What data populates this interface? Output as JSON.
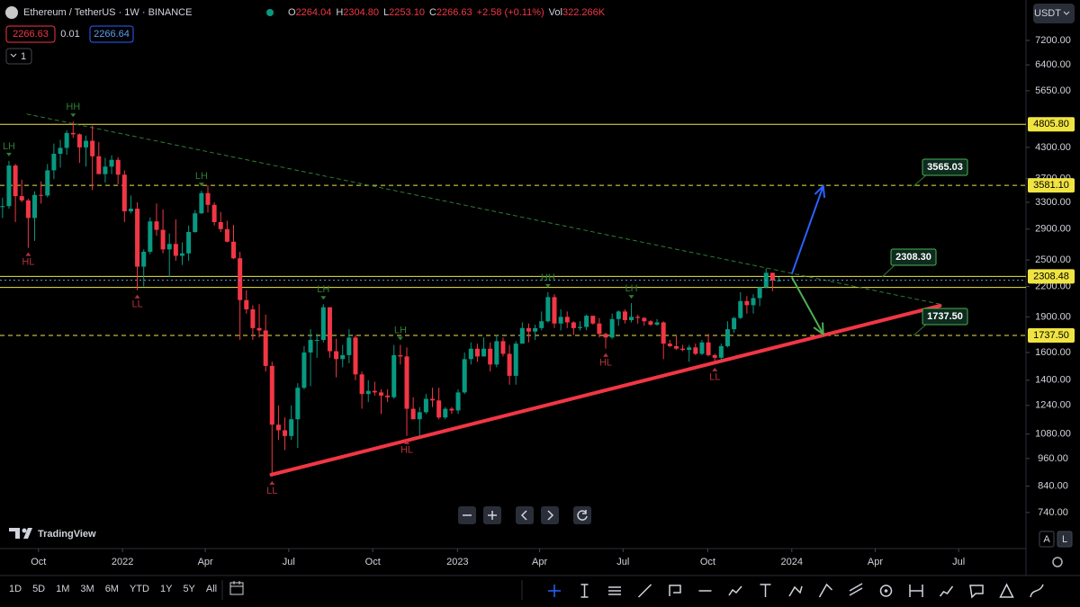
{
  "header": {
    "symbol": "Ethereum / TetherUS · 1W · BINANCE",
    "ohlc": [
      {
        "key": "O",
        "value": "2264.04"
      },
      {
        "key": "H",
        "value": "2304.80"
      },
      {
        "key": "L",
        "value": "2253.10"
      },
      {
        "key": "C",
        "value": "2266.63"
      },
      {
        "key": "",
        "value": "+2.58 (+0.11%)"
      }
    ],
    "volume_key": "Vol",
    "volume": "322.266K",
    "sell": "2266.63",
    "spread": "0.01",
    "buy": "2266.64",
    "indicators": "1",
    "currency": "USDT"
  },
  "chart_data": {
    "type": "candlestick",
    "log_scale": true,
    "up_color": "#089981",
    "down_color": "#f23645",
    "xlim": [
      0.6,
      160.5
    ],
    "ylim": [
      622,
      8750
    ],
    "xticks": [
      {
        "value": 6.6,
        "label": "Oct"
      },
      {
        "value": 19.7,
        "label": "2022"
      },
      {
        "value": 32.6,
        "label": "Apr"
      },
      {
        "value": 45.6,
        "label": "Jul"
      },
      {
        "value": 58.7,
        "label": "Oct"
      },
      {
        "value": 71.9,
        "label": "2023"
      },
      {
        "value": 84.7,
        "label": "Apr"
      },
      {
        "value": 97.7,
        "label": "Jul"
      },
      {
        "value": 110.9,
        "label": "Oct"
      },
      {
        "value": 124,
        "label": "2024"
      },
      {
        "value": 137,
        "label": "Apr"
      },
      {
        "value": 150,
        "label": "Jul"
      }
    ],
    "yticks": [
      {
        "value": 7200,
        "label": "7200.00"
      },
      {
        "value": 6400,
        "label": "6400.00"
      },
      {
        "value": 5650,
        "label": "5650.00"
      },
      {
        "value": 4300,
        "label": "4300.00"
      },
      {
        "value": 3700,
        "label": "3700.00"
      },
      {
        "value": 3300,
        "label": "3300.00"
      },
      {
        "value": 2900,
        "label": "2900.00"
      },
      {
        "value": 2500,
        "label": "2500.00"
      },
      {
        "value": 2200,
        "label": "2200.00"
      },
      {
        "value": 1900,
        "label": "1900.00"
      },
      {
        "value": 1600,
        "label": "1600.00"
      },
      {
        "value": 1400,
        "label": "1400.00"
      },
      {
        "value": 1240,
        "label": "1240.00"
      },
      {
        "value": 1080,
        "label": "1080.00"
      },
      {
        "value": 960,
        "label": "960.00"
      },
      {
        "value": 840,
        "label": "840.00"
      },
      {
        "value": 740,
        "label": "740.00"
      }
    ],
    "open": [
      3150,
      3225,
      3240,
      3940,
      3400,
      3330,
      3060,
      3420,
      3410,
      3850,
      4170,
      4290,
      4610,
      4580,
      4300,
      4440,
      4120,
      3780,
      3920,
      4050,
      3770,
      3160,
      3200,
      2420,
      2600,
      3010,
      2890,
      2630,
      2700,
      2550,
      2580,
      2860,
      3130,
      3450,
      3260,
      3000,
      2900,
      2730,
      2520,
      2060,
      1970,
      1800,
      1780,
      1500,
      1130,
      1100,
      1070,
      1160,
      1350,
      1600,
      1700,
      1700,
      1990,
      1610,
      1550,
      1580,
      1720,
      1440,
      1310,
      1330,
      1320,
      1300,
      1290,
      1580,
      1570,
      1220,
      1160,
      1200,
      1280,
      1270,
      1170,
      1220,
      1210,
      1320,
      1550,
      1630,
      1570,
      1630,
      1510,
      1690,
      1590,
      1430,
      1670,
      1800,
      1770,
      1800,
      1860,
      2090,
      1840,
      1900,
      1850,
      1800,
      1810,
      1910,
      1840,
      1750,
      1720,
      1880,
      1950,
      1870,
      1900,
      1890,
      1860,
      1830,
      1850,
      1670,
      1650,
      1630,
      1620,
      1640,
      1590,
      1680,
      1580,
      1560,
      1650,
      1790,
      1890,
      2050,
      2010,
      2080,
      2190,
      2350,
      2264.04
    ],
    "high": [
      3330,
      3375,
      4030,
      3970,
      3680,
      3360,
      3480,
      3650,
      3970,
      4380,
      4460,
      4670,
      4870,
      4600,
      4550,
      4780,
      4410,
      4090,
      4140,
      4100,
      3850,
      3410,
      3300,
      2630,
      3070,
      3280,
      3190,
      2840,
      3040,
      2720,
      2950,
      3180,
      3490,
      3580,
      3300,
      3150,
      3020,
      2960,
      2600,
      2160,
      2010,
      2020,
      1920,
      1530,
      1240,
      1170,
      1240,
      1380,
      1650,
      1790,
      1750,
      2020,
      1990,
      1710,
      1660,
      1790,
      1740,
      1460,
      1400,
      1390,
      1340,
      1340,
      1660,
      1660,
      1640,
      1290,
      1230,
      1310,
      1350,
      1350,
      1230,
      1230,
      1340,
      1600,
      1680,
      1670,
      1720,
      1680,
      1740,
      1720,
      1660,
      1690,
      1850,
      1840,
      1830,
      1950,
      2140,
      2120,
      1970,
      1950,
      1860,
      1860,
      1920,
      1910,
      1890,
      1760,
      1930,
      1960,
      1970,
      2030,
      1920,
      1900,
      1870,
      1880,
      1860,
      1700,
      1730,
      1660,
      1660,
      1670,
      1700,
      1750,
      1590,
      1670,
      1860,
      1900,
      2140,
      2100,
      2120,
      2200,
      2400,
      2350,
      2304.8
    ],
    "low": [
      2950,
      3060,
      3200,
      3000,
      3300,
      2650,
      2740,
      3280,
      3380,
      3690,
      3900,
      4150,
      4500,
      3990,
      3920,
      3500,
      3850,
      3630,
      3780,
      3600,
      3000,
      3130,
      2160,
      2200,
      2570,
      2810,
      2580,
      2300,
      2490,
      2440,
      2490,
      2850,
      3120,
      3140,
      2950,
      2860,
      2720,
      2510,
      1700,
      1930,
      1700,
      1720,
      1460,
      880,
      1050,
      1000,
      1050,
      1010,
      1340,
      1360,
      1560,
      1680,
      1560,
      1420,
      1490,
      1520,
      1400,
      1220,
      1260,
      1300,
      1190,
      1260,
      1280,
      1510,
      1070,
      1160,
      1070,
      1190,
      1230,
      1160,
      1160,
      1190,
      1190,
      1310,
      1510,
      1530,
      1570,
      1460,
      1490,
      1570,
      1370,
      1370,
      1670,
      1680,
      1700,
      1780,
      1850,
      1800,
      1780,
      1800,
      1740,
      1780,
      1780,
      1830,
      1720,
      1630,
      1710,
      1820,
      1840,
      1850,
      1840,
      1820,
      1820,
      1820,
      1550,
      1640,
      1620,
      1610,
      1530,
      1580,
      1580,
      1570,
      1520,
      1540,
      1640,
      1760,
      1880,
      1930,
      1930,
      2000,
      2180,
      2150,
      2253.1
    ],
    "close": [
      3225,
      3240,
      3940,
      3400,
      3330,
      3060,
      3420,
      3410,
      3850,
      4170,
      4290,
      4610,
      4580,
      4300,
      4440,
      4120,
      3780,
      3920,
      4050,
      3770,
      3160,
      3200,
      2420,
      2600,
      3010,
      2890,
      2630,
      2700,
      2550,
      2580,
      2860,
      3130,
      3450,
      3260,
      3000,
      2900,
      2730,
      2520,
      2060,
      1970,
      1800,
      1780,
      1500,
      1130,
      1100,
      1070,
      1160,
      1350,
      1600,
      1700,
      1700,
      1990,
      1610,
      1550,
      1580,
      1720,
      1440,
      1310,
      1330,
      1320,
      1300,
      1290,
      1580,
      1570,
      1220,
      1160,
      1200,
      1280,
      1270,
      1170,
      1220,
      1210,
      1320,
      1550,
      1630,
      1570,
      1630,
      1510,
      1690,
      1590,
      1430,
      1670,
      1800,
      1770,
      1800,
      1860,
      2090,
      1840,
      1900,
      1850,
      1800,
      1810,
      1910,
      1840,
      1750,
      1720,
      1880,
      1950,
      1870,
      1900,
      1890,
      1860,
      1830,
      1850,
      1670,
      1650,
      1630,
      1620,
      1640,
      1590,
      1680,
      1580,
      1560,
      1650,
      1790,
      1890,
      2050,
      2010,
      2080,
      2190,
      2350,
      2264,
      2266.63
    ],
    "pivots": [
      {
        "label": "LH",
        "index": 2,
        "side": "above",
        "color": "#2e7d32"
      },
      {
        "label": "HL",
        "index": 5,
        "side": "below",
        "color": "#b2303b"
      },
      {
        "label": "HH",
        "index": 12,
        "side": "above",
        "color": "#2e7d32"
      },
      {
        "label": "LL",
        "index": 22,
        "side": "below",
        "color": "#b2303b"
      },
      {
        "label": "LH",
        "index": 32,
        "side": "above",
        "color": "#2e7d32"
      },
      {
        "label": "LL",
        "index": 43,
        "side": "below",
        "color": "#b2303b"
      },
      {
        "label": "LH",
        "index": 51,
        "side": "above",
        "color": "#2e7d32"
      },
      {
        "label": "LH",
        "index": 63,
        "side": "above",
        "color": "#2e7d32"
      },
      {
        "label": "HL",
        "index": 64,
        "side": "below",
        "color": "#b2303b"
      },
      {
        "label": "HH",
        "index": 86,
        "side": "above",
        "color": "#2e7d32"
      },
      {
        "label": "HL",
        "index": 95,
        "side": "below",
        "color": "#b2303b"
      },
      {
        "label": "LH",
        "index": 99,
        "side": "above",
        "color": "#2e7d32"
      },
      {
        "label": "LL",
        "index": 112,
        "side": "below",
        "color": "#b2303b"
      }
    ],
    "levels": [
      {
        "value": 4805.8,
        "label": "4805.80",
        "style": "solid",
        "color": "#f0e442"
      },
      {
        "value": 3581.1,
        "label": "3581.10",
        "style": "dashed",
        "color": "#f0e442"
      },
      {
        "value": 2308.48,
        "label": "2308.48",
        "style": "solid",
        "color": "#f0e442"
      },
      {
        "value": 2190,
        "style": "solid",
        "color": "#f0e442"
      },
      {
        "value": 1737.5,
        "label": "1737.50",
        "style": "dashed",
        "color": "#f0e442"
      }
    ],
    "lines": [
      {
        "from": [
          42.9,
          888
        ],
        "to": [
          147.1,
          2005
        ],
        "color": "#f23645",
        "width": 4,
        "style": "solid"
      },
      {
        "from": [
          4.8,
          5050
        ],
        "to": [
          147.1,
          2020
        ],
        "color": "#2e7d32",
        "width": 1,
        "style": "dashed"
      }
    ],
    "arrows": [
      {
        "from": [
          124,
          2335
        ],
        "to": [
          128.9,
          3568
        ],
        "color": "#2962ff"
      },
      {
        "from": [
          124,
          2300
        ],
        "to": [
          128.9,
          1748
        ],
        "color": "#4caf50"
      }
    ],
    "callouts": [
      "3565.03",
      "2308.30",
      "1737.50"
    ]
  },
  "branding": "TradingView",
  "scale_buttons": [
    "A",
    "L"
  ],
  "timeframes": [
    "1D",
    "5D",
    "1M",
    "3M",
    "6M",
    "YTD",
    "1Y",
    "5Y",
    "All"
  ]
}
